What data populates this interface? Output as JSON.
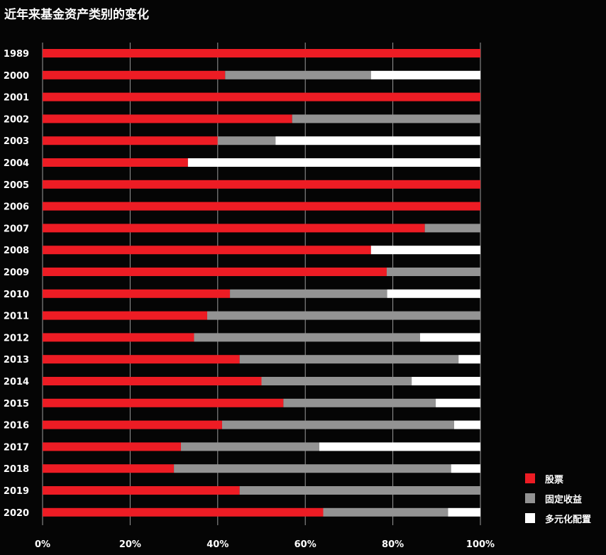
{
  "chart_data": {
    "type": "bar",
    "orientation": "horizontal",
    "stacked": true,
    "title": "近年来基金资产类别的变化",
    "categories": [
      "1989",
      "2000",
      "2001",
      "2002",
      "2003",
      "2004",
      "2005",
      "2006",
      "2007",
      "2008",
      "2009",
      "2010",
      "2011",
      "2012",
      "2013",
      "2014",
      "2015",
      "2016",
      "2017",
      "2018",
      "2019",
      "2020"
    ],
    "series": [
      {
        "name": "股票",
        "color": "#ed1c24",
        "values": [
          100,
          41.7,
          100,
          57,
          40,
          33.2,
          100,
          100,
          87.3,
          75,
          78.6,
          42.8,
          37.6,
          34.6,
          45,
          50,
          55,
          41,
          31.6,
          30,
          45,
          64.1
        ]
      },
      {
        "name": "固定收益",
        "color": "#939393",
        "values": [
          0,
          33.3,
          0,
          43,
          13.2,
          0,
          0,
          0,
          12.7,
          0,
          21.4,
          35.9,
          62.4,
          51.6,
          50,
          34.3,
          34.8,
          53,
          31.6,
          63.3,
          55,
          28.5
        ]
      },
      {
        "name": "多元化配置",
        "color": "#ffffff",
        "values": [
          0,
          25,
          0,
          0,
          46.8,
          66.8,
          0,
          0,
          0,
          25,
          0,
          21.3,
          0,
          13.8,
          5,
          15.7,
          10.2,
          6,
          36.8,
          6.7,
          0,
          7.4
        ]
      }
    ],
    "x_ticks": [
      "0%",
      "20%",
      "40%",
      "60%",
      "80%",
      "100%"
    ],
    "xlim": [
      0,
      100
    ],
    "grid": true,
    "legend_position": "bottom-right"
  }
}
